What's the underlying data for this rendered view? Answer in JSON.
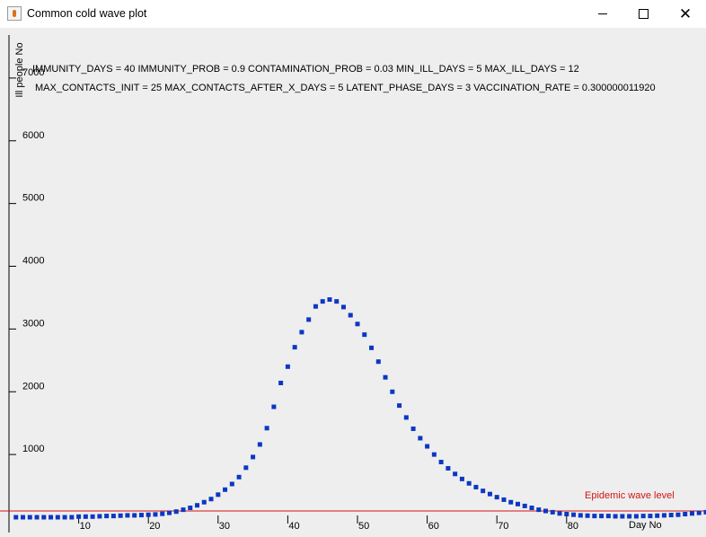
{
  "window": {
    "title": "Common cold wave plot",
    "icon": "java-cup-icon",
    "controls": [
      "minimize-icon",
      "maximize-icon",
      "close-icon"
    ]
  },
  "params_line1": "IMMUNITY_DAYS = 40 IMMUNITY_PROB = 0.9 CONTAMINATION_PROB = 0.03 MIN_ILL_DAYS = 5 MAX_ILL_DAYS = 12",
  "params_line2": "MAX_CONTACTS_INIT = 25 MAX_CONTACTS_AFTER_X_DAYS = 5 LATENT_PHASE_DAYS = 3 VACCINATION_RATE = 0.300000011920",
  "chart_data": {
    "type": "scatter",
    "title": "",
    "xlabel": "Day No",
    "ylabel": "Ill people No",
    "xlim": [
      0,
      100
    ],
    "ylim": [
      0,
      7800
    ],
    "xticks": [
      10,
      20,
      30,
      40,
      50,
      60,
      70,
      80
    ],
    "yticks": [
      1000,
      2000,
      3000,
      4000,
      5000,
      6000,
      7000
    ],
    "grid": false,
    "point_color": "#0b37c4",
    "epidemic_level": {
      "label": "Epidemic wave level",
      "value": 100,
      "color": "#d21414"
    },
    "x": [
      1,
      2,
      3,
      4,
      5,
      6,
      7,
      8,
      9,
      10,
      11,
      12,
      13,
      14,
      15,
      16,
      17,
      18,
      19,
      20,
      21,
      22,
      23,
      24,
      25,
      26,
      27,
      28,
      29,
      30,
      31,
      32,
      33,
      34,
      35,
      36,
      37,
      38,
      39,
      40,
      41,
      42,
      43,
      44,
      45,
      46,
      47,
      48,
      49,
      50,
      51,
      52,
      53,
      54,
      55,
      56,
      57,
      58,
      59,
      60,
      61,
      62,
      63,
      64,
      65,
      66,
      67,
      68,
      69,
      70,
      71,
      72,
      73,
      74,
      75,
      76,
      77,
      78,
      79,
      80,
      81,
      82,
      83,
      84,
      85,
      86,
      87,
      88,
      89,
      90,
      91,
      92,
      93,
      94,
      95,
      96,
      97,
      98,
      99,
      100
    ],
    "y": [
      0,
      0,
      0,
      0,
      0,
      0,
      0,
      0,
      0,
      10,
      10,
      10,
      15,
      20,
      20,
      25,
      30,
      30,
      35,
      40,
      45,
      55,
      70,
      90,
      120,
      150,
      190,
      240,
      290,
      360,
      440,
      530,
      640,
      790,
      960,
      1160,
      1420,
      1760,
      2140,
      2400,
      2710,
      2950,
      3150,
      3360,
      3440,
      3470,
      3440,
      3350,
      3220,
      3080,
      2910,
      2700,
      2480,
      2230,
      2000,
      1780,
      1590,
      1410,
      1260,
      1130,
      1000,
      880,
      780,
      690,
      610,
      540,
      480,
      420,
      370,
      320,
      280,
      240,
      210,
      180,
      150,
      120,
      100,
      80,
      60,
      50,
      40,
      30,
      25,
      20,
      20,
      20,
      15,
      15,
      15,
      15,
      20,
      20,
      25,
      30,
      35,
      40,
      50,
      60,
      70,
      80
    ]
  }
}
